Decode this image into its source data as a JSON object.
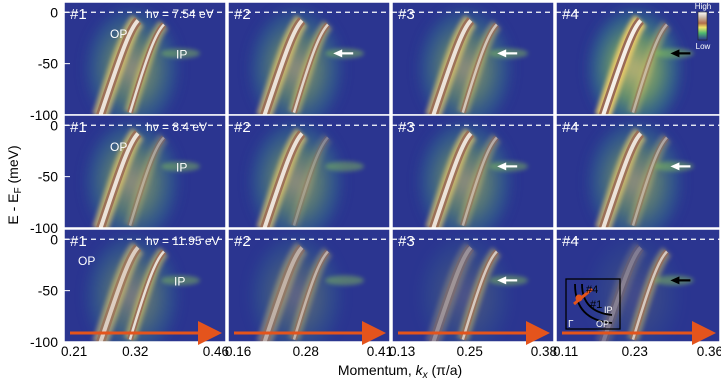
{
  "figure": {
    "ylabel_main": "E - E",
    "ylabel_sub": "F",
    "ylabel_unit": " (meV)",
    "xlabel_main": "Momentum, ",
    "xlabel_k": "k",
    "xlabel_sub": "x",
    "xlabel_unit": " (π/a)",
    "colorbar_high": "High",
    "colorbar_low": "Low",
    "inset_labels": {
      "n4": "#4",
      "n1": "#1",
      "ip": "IP",
      "op": "OP",
      "gamma": "Γ"
    },
    "band_label_op": "OP",
    "band_label_ip": "IP",
    "colors": {
      "background": "#2b3590",
      "arrow_orange": "#e4541c",
      "arrow_white": "#ffffff",
      "arrow_black": "#000000",
      "dashed_line": "#ffffff"
    }
  },
  "chart_data": {
    "type": "heatmap",
    "description_rows": [
      {
        "photon_energy_label": "hν = 7.54 eV",
        "op_ip_labels": true
      },
      {
        "photon_energy_label": "hν = 8.4 eV",
        "op_ip_labels": true
      },
      {
        "photon_energy_label": "hν = 11.95 eV",
        "op_ip_labels": true
      }
    ],
    "columns": [
      {
        "cut": "#1",
        "x_ticks": [
          "0.21",
          "0.32",
          "0.46"
        ],
        "xlim": [
          0.21,
          0.46
        ]
      },
      {
        "cut": "#2",
        "x_ticks": [
          "0.16",
          "0.28",
          "0.41"
        ],
        "xlim": [
          0.16,
          0.41
        ]
      },
      {
        "cut": "#3",
        "x_ticks": [
          "0.13",
          "0.25",
          "0.38"
        ],
        "xlim": [
          0.13,
          0.38
        ]
      },
      {
        "cut": "#4",
        "x_ticks": [
          "0.11",
          "0.23",
          "0.36"
        ],
        "xlim": [
          0.11,
          0.36
        ]
      }
    ],
    "y_ticks": [
      "0",
      "-50",
      "-100"
    ],
    "ylim": [
      -100,
      10
    ],
    "fermi_level_dashed": 0,
    "kink_arrow_energy": -40,
    "arrows": [
      {
        "row": 0,
        "col": 1,
        "color": "white"
      },
      {
        "row": 0,
        "col": 2,
        "color": "white"
      },
      {
        "row": 0,
        "col": 3,
        "color": "black"
      },
      {
        "row": 1,
        "col": 2,
        "color": "white"
      },
      {
        "row": 1,
        "col": 3,
        "color": "white"
      },
      {
        "row": 2,
        "col": 2,
        "color": "white"
      },
      {
        "row": 2,
        "col": 3,
        "color": "black"
      }
    ]
  }
}
